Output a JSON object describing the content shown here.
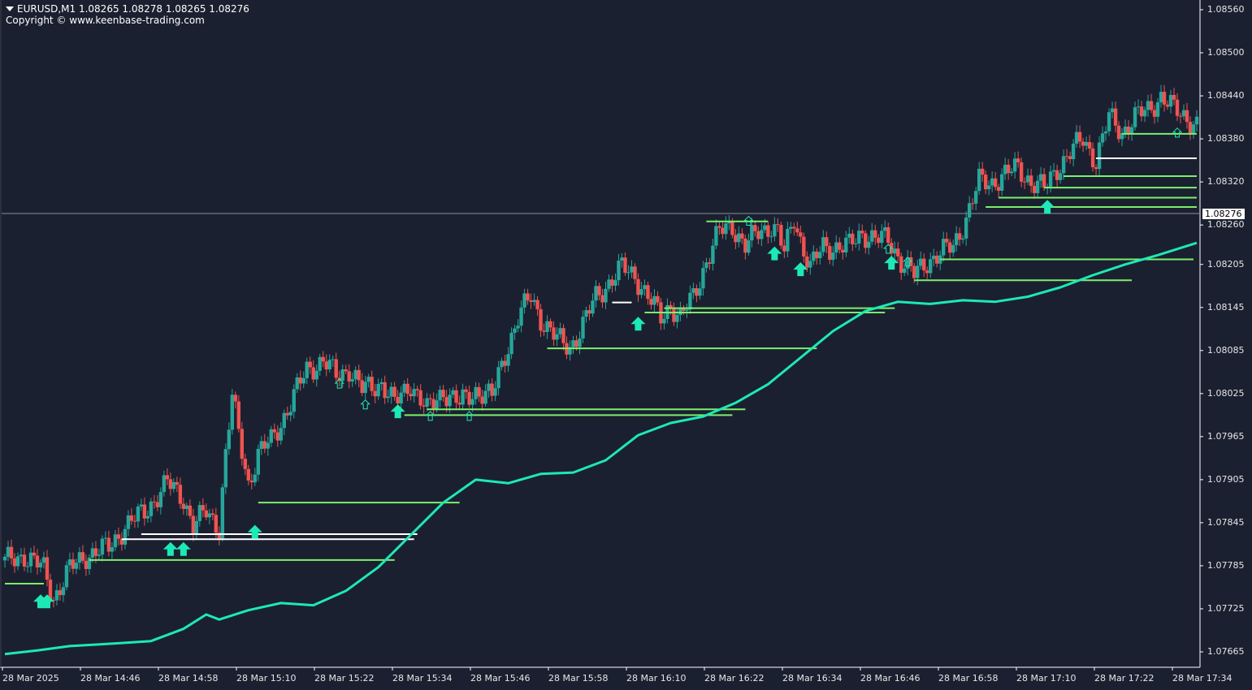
{
  "header": {
    "title": "EURUSD,M1  1.08265 1.08278 1.08265 1.08276",
    "copyright": "Copyright © www.keenbase-trading.com"
  },
  "colors": {
    "background": "#1b2030",
    "bull": "#26a69a",
    "bear": "#ef5350",
    "level_line": "#7bf06b",
    "level_white": "#ffffff",
    "trend": "#1de9b6",
    "arrow": "#1de9b6",
    "axis": "#ffffff",
    "current_price_line": "#8a8f99"
  },
  "chart_data": {
    "type": "candlestick",
    "symbol": "EURUSD",
    "timeframe": "M1",
    "ohlc_header": {
      "open": 1.08265,
      "high": 1.08278,
      "low": 1.08265,
      "close": 1.08276
    },
    "current_price": 1.08276,
    "current_price_label": "1.08276",
    "ylim": [
      1.0763,
      1.0859
    ],
    "yticks": [
      "1.08560",
      "1.08500",
      "1.08440",
      "1.08380",
      "1.08320",
      "1.08260",
      "1.08205",
      "1.08145",
      "1.08085",
      "1.08025",
      "1.07965",
      "1.07905",
      "1.07845",
      "1.07785",
      "1.07725",
      "1.07665"
    ],
    "xticks": [
      "28 Mar 2025",
      "28 Mar 14:46",
      "28 Mar 14:58",
      "28 Mar 15:10",
      "28 Mar 15:22",
      "28 Mar 15:34",
      "28 Mar 15:46",
      "28 Mar 15:58",
      "28 Mar 16:10",
      "28 Mar 16:22",
      "28 Mar 16:34",
      "28 Mar 16:46",
      "28 Mar 16:58",
      "28 Mar 17:10",
      "28 Mar 17:22",
      "28 Mar 17:34"
    ],
    "price_path": [
      [
        0,
        1.0779
      ],
      [
        6,
        1.078
      ],
      [
        12,
        1.0778
      ],
      [
        15,
        1.0774
      ],
      [
        20,
        1.0778
      ],
      [
        25,
        1.078
      ],
      [
        32,
        1.0781
      ],
      [
        37,
        1.0784
      ],
      [
        43,
        1.0786
      ],
      [
        50,
        1.079
      ],
      [
        55,
        1.0788
      ],
      [
        58,
        1.0784
      ],
      [
        62,
        1.0786
      ],
      [
        66,
        1.0784
      ],
      [
        68,
        1.0794
      ],
      [
        70,
        1.0802
      ],
      [
        72,
        1.0797
      ],
      [
        75,
        1.079
      ],
      [
        78,
        1.0794
      ],
      [
        82,
        1.0796
      ],
      [
        88,
        1.0801
      ],
      [
        93,
        1.0806
      ],
      [
        98,
        1.0807
      ],
      [
        102,
        1.0805
      ],
      [
        106,
        1.0806
      ],
      [
        110,
        1.0803
      ],
      [
        116,
        1.0804
      ],
      [
        120,
        1.0801
      ],
      [
        125,
        1.0804
      ],
      [
        130,
        1.08
      ],
      [
        135,
        1.0803
      ],
      [
        140,
        1.0801
      ],
      [
        145,
        1.0803
      ],
      [
        150,
        1.0802
      ],
      [
        154,
        1.0808
      ],
      [
        158,
        1.0813
      ],
      [
        162,
        1.0816
      ],
      [
        165,
        1.0813
      ],
      [
        170,
        1.081
      ],
      [
        174,
        1.0809
      ],
      [
        178,
        1.0812
      ],
      [
        182,
        1.0816
      ],
      [
        186,
        1.0818
      ],
      [
        190,
        1.082
      ],
      [
        194,
        1.0819
      ],
      [
        198,
        1.0816
      ],
      [
        202,
        1.0813
      ],
      [
        205,
        1.0815
      ],
      [
        208,
        1.0813
      ],
      [
        212,
        1.0816
      ],
      [
        216,
        1.0821
      ],
      [
        220,
        1.0825
      ],
      [
        224,
        1.0826
      ],
      [
        228,
        1.0823
      ],
      [
        232,
        1.0825
      ],
      [
        236,
        1.0826
      ],
      [
        238,
        1.0825
      ],
      [
        240,
        1.0822
      ],
      [
        243,
        1.0827
      ],
      [
        245,
        1.0824
      ],
      [
        248,
        1.082
      ],
      [
        252,
        1.0823
      ],
      [
        256,
        1.0823
      ],
      [
        260,
        1.0823
      ],
      [
        264,
        1.0825
      ],
      [
        268,
        1.0824
      ],
      [
        272,
        1.0824
      ],
      [
        276,
        1.0821
      ],
      [
        280,
        1.0819
      ],
      [
        284,
        1.0821
      ],
      [
        288,
        1.0822
      ],
      [
        292,
        1.0823
      ],
      [
        296,
        1.0827
      ],
      [
        300,
        1.0832
      ],
      [
        304,
        1.0832
      ],
      [
        308,
        1.0833
      ],
      [
        312,
        1.0834
      ],
      [
        316,
        1.0832
      ],
      [
        320,
        1.0831
      ],
      [
        324,
        1.0834
      ],
      [
        328,
        1.0836
      ],
      [
        332,
        1.0838
      ],
      [
        336,
        1.0835
      ],
      [
        340,
        1.0841
      ],
      [
        344,
        1.0839
      ],
      [
        348,
        1.0841
      ],
      [
        352,
        1.0842
      ],
      [
        356,
        1.0844
      ],
      [
        360,
        1.0842
      ],
      [
        364,
        1.0841
      ],
      [
        367,
        1.084
      ]
    ],
    "trend_line": [
      [
        0,
        1.07662
      ],
      [
        10,
        1.07667
      ],
      [
        20,
        1.07673
      ],
      [
        35,
        1.07677
      ],
      [
        45,
        1.0768
      ],
      [
        55,
        1.07697
      ],
      [
        62,
        1.07717
      ],
      [
        66,
        1.0771
      ],
      [
        75,
        1.07723
      ],
      [
        85,
        1.07733
      ],
      [
        95,
        1.0773
      ],
      [
        105,
        1.0775
      ],
      [
        115,
        1.07783
      ],
      [
        125,
        1.07828
      ],
      [
        135,
        1.07873
      ],
      [
        145,
        1.07905
      ],
      [
        155,
        1.079
      ],
      [
        165,
        1.07913
      ],
      [
        175,
        1.07915
      ],
      [
        185,
        1.07932
      ],
      [
        195,
        1.07967
      ],
      [
        205,
        1.07984
      ],
      [
        215,
        1.07993
      ],
      [
        225,
        1.08012
      ],
      [
        235,
        1.08038
      ],
      [
        245,
        1.08075
      ],
      [
        255,
        1.08112
      ],
      [
        265,
        1.0814
      ],
      [
        275,
        1.08153
      ],
      [
        285,
        1.0815
      ],
      [
        295,
        1.08155
      ],
      [
        305,
        1.08153
      ],
      [
        315,
        1.0816
      ],
      [
        325,
        1.08173
      ],
      [
        335,
        1.0819
      ],
      [
        345,
        1.08205
      ],
      [
        355,
        1.08218
      ],
      [
        367,
        1.08235
      ]
    ],
    "levels": [
      {
        "price": 1.0776,
        "from": 0,
        "to": 12,
        "color": "level_line"
      },
      {
        "price": 1.07793,
        "from": 26,
        "to": 120,
        "color": "level_line"
      },
      {
        "price": 1.07822,
        "from": 36,
        "to": 126,
        "color": "level_white"
      },
      {
        "price": 1.07829,
        "from": 42,
        "to": 127,
        "color": "level_white"
      },
      {
        "price": 1.07873,
        "from": 78,
        "to": 140,
        "color": "level_line"
      },
      {
        "price": 1.07995,
        "from": 123,
        "to": 224,
        "color": "level_line"
      },
      {
        "price": 1.08003,
        "from": 130,
        "to": 228,
        "color": "level_line"
      },
      {
        "price": 1.08088,
        "from": 167,
        "to": 250,
        "color": "level_line"
      },
      {
        "price": 1.08138,
        "from": 197,
        "to": 271,
        "color": "level_line"
      },
      {
        "price": 1.08144,
        "from": 203,
        "to": 274,
        "color": "level_line"
      },
      {
        "price": 1.08152,
        "from": 187,
        "to": 193,
        "color": "level_white"
      },
      {
        "price": 1.08183,
        "from": 280,
        "to": 347,
        "color": "level_line"
      },
      {
        "price": 1.08212,
        "from": 288,
        "to": 366,
        "color": "level_line"
      },
      {
        "price": 1.08265,
        "from": 216,
        "to": 235,
        "color": "level_line"
      },
      {
        "price": 1.08285,
        "from": 302,
        "to": 367,
        "color": "level_line"
      },
      {
        "price": 1.08298,
        "from": 306,
        "to": 367,
        "color": "level_line"
      },
      {
        "price": 1.08312,
        "from": 320,
        "to": 367,
        "color": "level_line"
      },
      {
        "price": 1.08328,
        "from": 326,
        "to": 367,
        "color": "level_line"
      },
      {
        "price": 1.08353,
        "from": 336,
        "to": 367,
        "color": "level_white"
      },
      {
        "price": 1.08387,
        "from": 344,
        "to": 367,
        "color": "level_line"
      }
    ],
    "signals": [
      {
        "index": 11,
        "price": 1.07745,
        "kind": "big"
      },
      {
        "index": 13,
        "price": 1.07745,
        "kind": "big"
      },
      {
        "index": 51,
        "price": 1.07818,
        "kind": "big"
      },
      {
        "index": 55,
        "price": 1.07818,
        "kind": "big"
      },
      {
        "index": 77,
        "price": 1.07842,
        "kind": "big"
      },
      {
        "index": 103,
        "price": 1.08045,
        "kind": "small"
      },
      {
        "index": 111,
        "price": 1.08016,
        "kind": "small"
      },
      {
        "index": 121,
        "price": 1.0801,
        "kind": "big"
      },
      {
        "index": 131,
        "price": 1.08,
        "kind": "small"
      },
      {
        "index": 143,
        "price": 1.08,
        "kind": "small"
      },
      {
        "index": 195,
        "price": 1.08132,
        "kind": "big"
      },
      {
        "index": 229,
        "price": 1.08272,
        "kind": "small"
      },
      {
        "index": 237,
        "price": 1.0823,
        "kind": "big"
      },
      {
        "index": 245,
        "price": 1.08208,
        "kind": "big"
      },
      {
        "index": 272,
        "price": 1.08233,
        "kind": "small"
      },
      {
        "index": 273,
        "price": 1.08217,
        "kind": "big"
      },
      {
        "index": 278,
        "price": 1.08215,
        "kind": "small"
      },
      {
        "index": 321,
        "price": 1.08295,
        "kind": "big"
      },
      {
        "index": 361,
        "price": 1.08395,
        "kind": "small"
      }
    ]
  }
}
